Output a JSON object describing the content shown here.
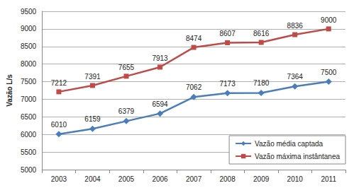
{
  "chart_data": {
    "type": "line",
    "y_label": "Vazão L/s",
    "categories": [
      "2003",
      "2004",
      "2005",
      "2006",
      "2007",
      "2008",
      "2009",
      "2010",
      "2011"
    ],
    "series": [
      {
        "name": "Vazão média captada",
        "color": "#4a7ebb",
        "marker": "diamond",
        "values": [
          6010,
          6159,
          6379,
          6594,
          7062,
          7173,
          7180,
          7364,
          7500
        ]
      },
      {
        "name": "Vazão máxima instântanea",
        "color": "#be4b48",
        "marker": "square",
        "values": [
          7212,
          7391,
          7655,
          7913,
          8474,
          8607,
          8616,
          8836,
          9000
        ]
      }
    ],
    "ylim": [
      5000,
      9500
    ],
    "yticks": [
      5000,
      5500,
      6000,
      6500,
      7000,
      7500,
      8000,
      8500,
      9000,
      9500
    ],
    "grid": true,
    "legend": "bottom-right",
    "data_labels": true
  }
}
